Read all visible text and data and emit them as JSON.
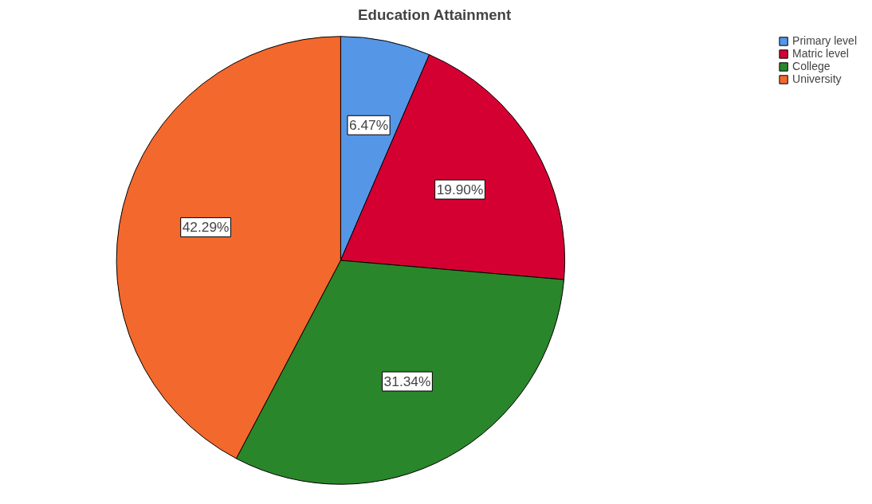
{
  "chart_data": {
    "type": "pie",
    "title": "Education Attainment",
    "categories": [
      "Primary level",
      "Matric level",
      "College",
      "University"
    ],
    "values": [
      6.47,
      19.9,
      31.34,
      42.29
    ],
    "colors": [
      "#5596e6",
      "#d50032",
      "#2a862a",
      "#f3682c"
    ],
    "value_labels": [
      "6.47%",
      "19.90%",
      "31.34%",
      "42.29%"
    ],
    "legend": "top right"
  }
}
